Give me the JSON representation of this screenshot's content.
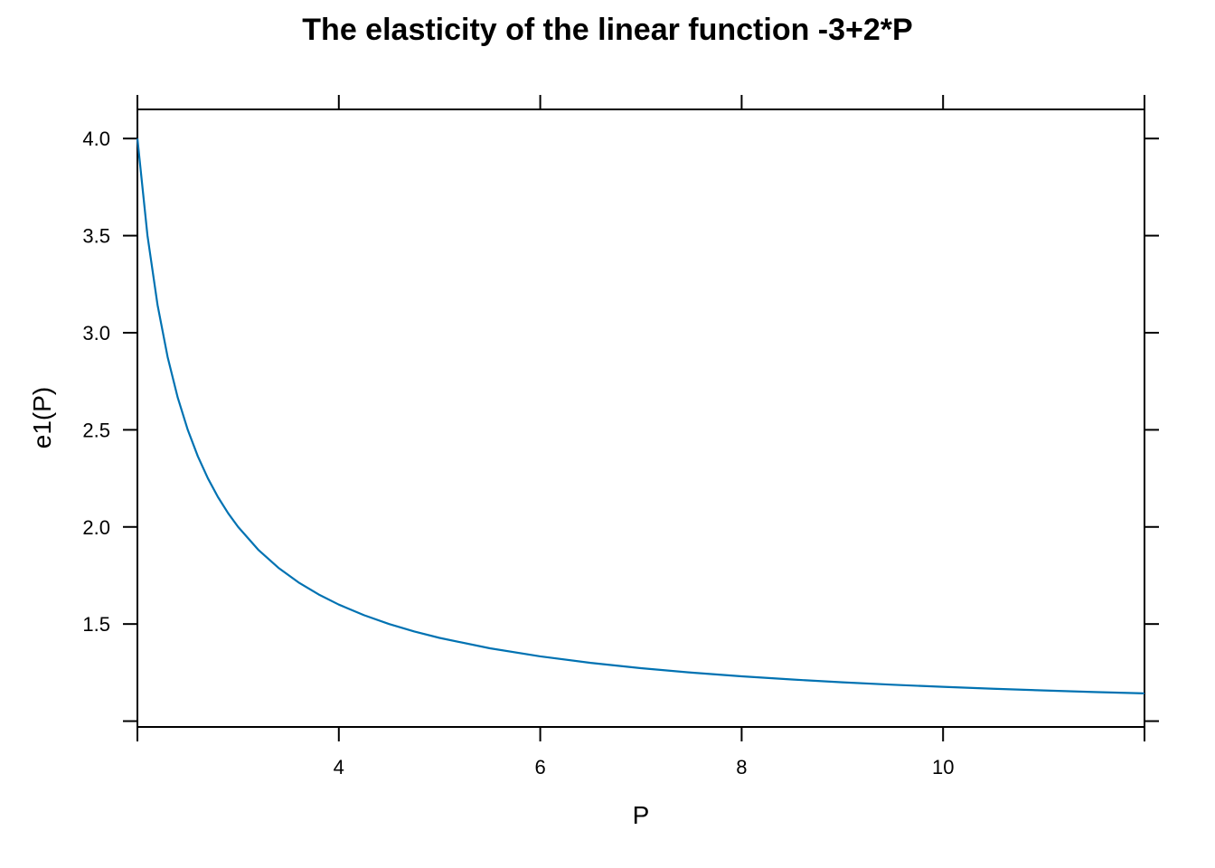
{
  "chart_data": {
    "type": "line",
    "title": "The elasticity of the linear function -3+2*P",
    "xlabel": "P",
    "ylabel": "e1(P)",
    "xlim": [
      2,
      12
    ],
    "ylim": [
      0.97,
      4.15
    ],
    "x_ticks": [
      4,
      6,
      8,
      10
    ],
    "x_tick_labels": [
      "4",
      "6",
      "8",
      "10"
    ],
    "y_ticks": [
      1.5,
      2.0,
      2.5,
      3.0,
      3.5,
      4.0
    ],
    "y_tick_labels": [
      "1.5",
      "2.0",
      "2.5",
      "3.0",
      "3.5",
      "4.0"
    ],
    "grid": false,
    "line_color": "#0072B2",
    "series": [
      {
        "x": [
          2.0,
          2.1,
          2.2,
          2.3,
          2.4,
          2.5,
          2.6,
          2.7,
          2.8,
          2.9,
          3.0,
          3.2,
          3.4,
          3.6,
          3.8,
          4.0,
          4.25,
          4.5,
          4.75,
          5.0,
          5.5,
          6.0,
          6.5,
          7.0,
          7.5,
          8.0,
          8.5,
          9.0,
          9.5,
          10.0,
          10.5,
          11.0,
          11.5,
          12.0
        ],
        "y": [
          4.0,
          3.5,
          3.1429,
          2.875,
          2.6667,
          2.5,
          2.3636,
          2.25,
          2.1538,
          2.0714,
          2.0,
          1.8824,
          1.7895,
          1.7143,
          1.6522,
          1.6,
          1.5455,
          1.5,
          1.4615,
          1.4286,
          1.375,
          1.3333,
          1.3,
          1.2727,
          1.25,
          1.2308,
          1.2143,
          1.2,
          1.1875,
          1.1765,
          1.1667,
          1.1579,
          1.15,
          1.1429
        ]
      }
    ]
  }
}
